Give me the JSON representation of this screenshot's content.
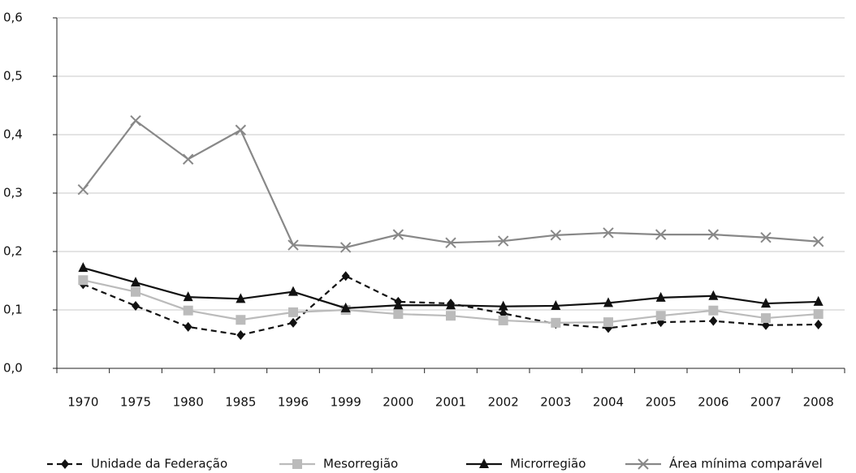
{
  "chart_data": {
    "type": "line",
    "categories": [
      "1970",
      "1975",
      "1980",
      "1985",
      "1996",
      "1999",
      "2000",
      "2001",
      "2002",
      "2003",
      "2004",
      "2005",
      "2006",
      "2007",
      "2008"
    ],
    "ylim": [
      0,
      0.6
    ],
    "yticks": [
      {
        "value": 0,
        "label": "0,0"
      },
      {
        "value": 0.1,
        "label": "0,1"
      },
      {
        "value": 0.2,
        "label": "0,2"
      },
      {
        "value": 0.3,
        "label": "0,3"
      },
      {
        "value": 0.4,
        "label": "0,4"
      },
      {
        "value": 0.5,
        "label": "0,5"
      },
      {
        "value": 0.6,
        "label": "0,6"
      }
    ],
    "grid": true,
    "legend": "bottom",
    "series": [
      {
        "name": "Unidade da Federação",
        "color": "#111111",
        "marker": "diamond",
        "dashed": true,
        "values": [
          0.144,
          0.107,
          0.071,
          0.057,
          0.078,
          0.158,
          0.114,
          0.111,
          0.094,
          0.076,
          0.069,
          0.079,
          0.081,
          0.074,
          0.075
        ]
      },
      {
        "name": "Mesorregião",
        "color": "#bbbbbb",
        "marker": "square",
        "dashed": false,
        "values": [
          0.151,
          0.131,
          0.099,
          0.083,
          0.096,
          0.1,
          0.093,
          0.09,
          0.082,
          0.078,
          0.079,
          0.09,
          0.099,
          0.086,
          0.093
        ]
      },
      {
        "name": "Microrregião",
        "color": "#111111",
        "marker": "triangle",
        "dashed": false,
        "values": [
          0.172,
          0.147,
          0.122,
          0.119,
          0.131,
          0.103,
          0.108,
          0.108,
          0.106,
          0.107,
          0.112,
          0.121,
          0.124,
          0.111,
          0.114
        ]
      },
      {
        "name": "Área mínima comparável",
        "color": "#888888",
        "marker": "x",
        "dashed": false,
        "values": [
          0.306,
          0.424,
          0.358,
          0.408,
          0.211,
          0.207,
          0.229,
          0.215,
          0.218,
          0.228,
          0.232,
          0.229,
          0.229,
          0.224,
          0.217
        ]
      }
    ]
  }
}
